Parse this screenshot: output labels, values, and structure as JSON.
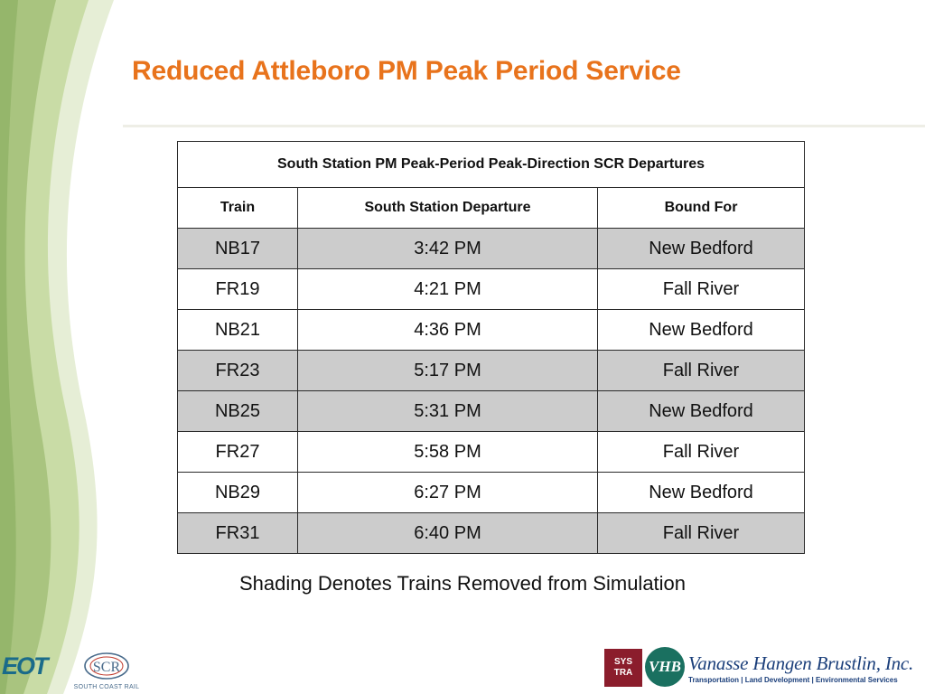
{
  "slide": {
    "title": "Reduced Attleboro PM Peak Period Service",
    "note": "Shading Denotes Trains Removed from Simulation"
  },
  "table": {
    "caption": "South Station PM Peak-Period Peak-Direction SCR Departures",
    "headers": [
      "Train",
      "South Station Departure",
      "Bound For"
    ],
    "rows": [
      {
        "train": "NB17",
        "departure": "3:42 PM",
        "bound_for": "New Bedford",
        "shaded": true
      },
      {
        "train": "FR19",
        "departure": "4:21 PM",
        "bound_for": "Fall River",
        "shaded": false
      },
      {
        "train": "NB21",
        "departure": "4:36 PM",
        "bound_for": "New Bedford",
        "shaded": false
      },
      {
        "train": "FR23",
        "departure": "5:17 PM",
        "bound_for": "Fall River",
        "shaded": true
      },
      {
        "train": "NB25",
        "departure": "5:31 PM",
        "bound_for": "New Bedford",
        "shaded": true
      },
      {
        "train": "FR27",
        "departure": "5:58 PM",
        "bound_for": "Fall River",
        "shaded": false
      },
      {
        "train": "NB29",
        "departure": "6:27 PM",
        "bound_for": "New Bedford",
        "shaded": false
      },
      {
        "train": "FR31",
        "departure": "6:40 PM",
        "bound_for": "Fall River",
        "shaded": true
      }
    ]
  },
  "logos": {
    "eot": "EOT",
    "scr_mark": "SCR",
    "scr_text": "SOUTH COAST RAIL",
    "systra_line1": "SYS",
    "systra_line2": "TRA",
    "vhb_mark": "VHB",
    "vhb_name": "Vanasse Hangen Brustlin, Inc.",
    "vhb_tagline": "Transportation | Land Development | Environmental Services"
  },
  "colors": {
    "title": "#e8731c",
    "shaded_row": "#cccccc",
    "deco_green_light": "#dbe6c5",
    "deco_green_mid": "#b7cd8f",
    "deco_green_dark": "#8fb06a"
  }
}
